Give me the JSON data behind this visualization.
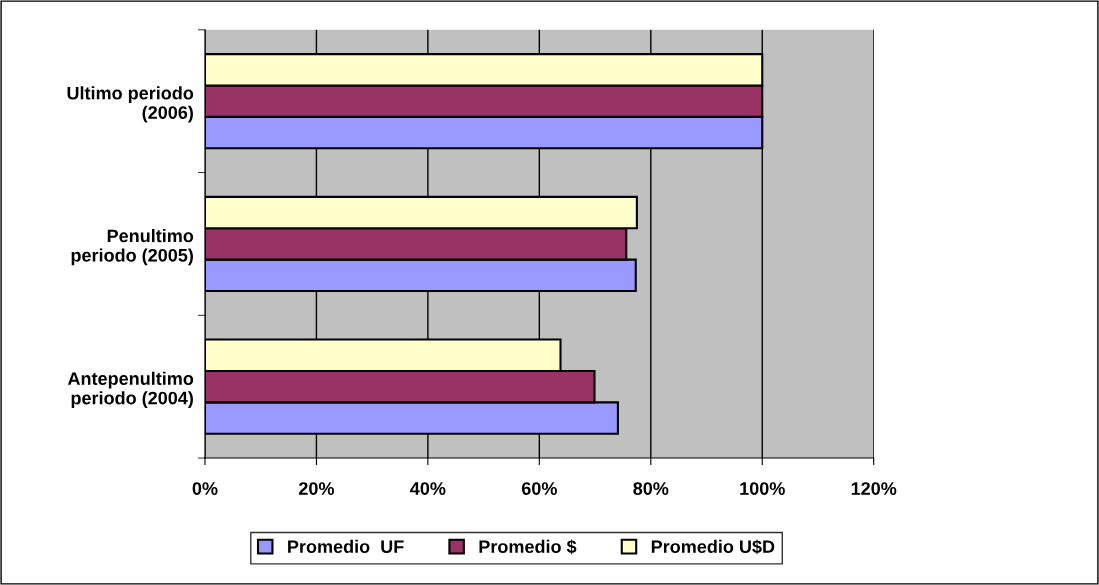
{
  "chart_data": {
    "type": "bar",
    "orientation": "horizontal",
    "categories": [
      "Ultimo periodo\n(2006)",
      "Penultimo\nperiodo (2005)",
      "Antepenultimo\nperiodo (2004)"
    ],
    "series": [
      {
        "name": "Promedio  UF",
        "color": "#9999ff",
        "values": [
          100,
          77.3,
          74.1
        ]
      },
      {
        "name": "Promedio $",
        "color": "#993366",
        "values": [
          100,
          75.6,
          69.9
        ]
      },
      {
        "name": "Promedio U$D",
        "color": "#ffffcc",
        "values": [
          100,
          77.5,
          63.8
        ]
      }
    ],
    "xlim": [
      0,
      120
    ],
    "xticks": [
      {
        "value": 0,
        "label": "0%"
      },
      {
        "value": 20,
        "label": "20%"
      },
      {
        "value": 40,
        "label": "40%"
      },
      {
        "value": 60,
        "label": "60%"
      },
      {
        "value": 80,
        "label": "80%"
      },
      {
        "value": 100,
        "label": "100%"
      },
      {
        "value": 120,
        "label": "120%"
      }
    ],
    "grid": "x",
    "legend": "bottom"
  }
}
